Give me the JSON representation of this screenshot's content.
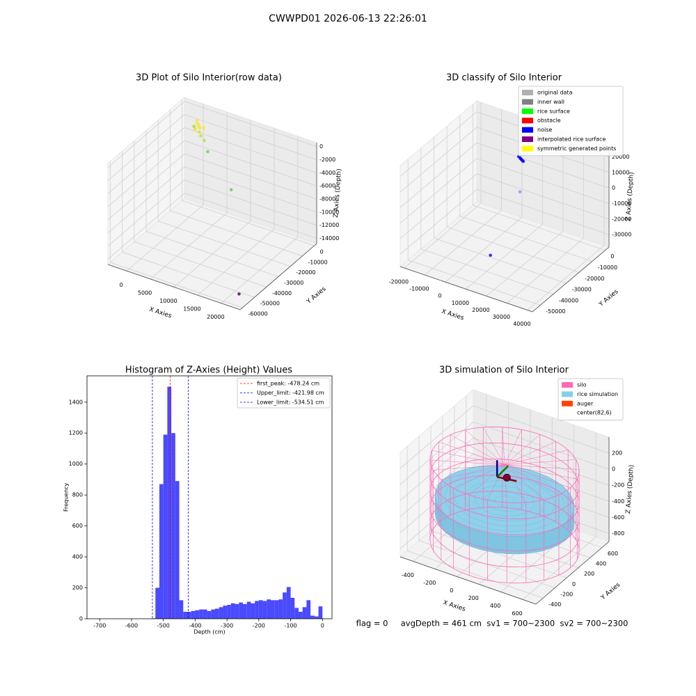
{
  "title": "CWWPD01 2026-06-13 22:26:01",
  "footer": "flag = 0     avgDepth = 461 cm  sv1 = 700~2300  sv2 = 700~2300",
  "chart_data": [
    {
      "type": "scatter3d",
      "title": "3D Plot of Silo Interior(row data)",
      "xlabel": "X Axies",
      "ylabel": "Y Axies",
      "zlabel": "Z Axies (Depth)",
      "xlim": [
        -4000,
        24000
      ],
      "ylim": [
        -62000,
        2000
      ],
      "zlim": [
        -14800,
        600
      ],
      "xticks": [
        0,
        5000,
        10000,
        15000,
        20000
      ],
      "yticks": [
        -60000,
        -50000,
        -40000,
        -30000,
        -20000,
        -10000,
        0
      ],
      "zticks": [
        -14000,
        -12000,
        -10000,
        -8000,
        -6000,
        -4000,
        -2000,
        0
      ],
      "points": {
        "x": [
          1500,
          2000,
          2500,
          3000,
          1800,
          2800,
          3500,
          1200,
          2200,
          4500,
          6500,
          800,
          14000,
          22000
        ],
        "y": [
          -9000,
          -10000,
          -11000,
          -9500,
          -12000,
          -12500,
          -14000,
          -8000,
          -10500,
          -15000,
          -20000,
          -9000,
          -30000,
          -55000
        ],
        "z": [
          -300,
          -200,
          -400,
          -500,
          -600,
          -700,
          -900,
          -100,
          -350,
          -1200,
          -1600,
          -900,
          -4000,
          -14000
        ],
        "colors": [
          "#fde725",
          "#fde725",
          "#f1e51d",
          "#fde725",
          "#e2e418",
          "#d8e219",
          "#c2df23",
          "#fde725",
          "#fde725",
          "#b5de2b",
          "#6ccd5a",
          "#a2da37",
          "#5ec962",
          "#440154"
        ]
      }
    },
    {
      "type": "scatter3d",
      "title": "3D classify of Silo Interior",
      "xlabel": "X Axies",
      "ylabel": "Y Axies",
      "zlabel": "Z Axies (Depth)",
      "xlim": [
        -22000,
        42400
      ],
      "ylim": [
        -56000,
        3000
      ],
      "zlim": [
        -38000,
        27000
      ],
      "xticks": [
        -20000,
        -10000,
        0,
        10000,
        20000,
        30000,
        40000
      ],
      "yticks": [
        -50000,
        -40000,
        -30000,
        -20000,
        -10000,
        0
      ],
      "zticks": [
        -30000,
        -20000,
        -10000,
        0,
        10000,
        20000
      ],
      "legend": [
        {
          "name": "original data",
          "color": "#b0b0b0"
        },
        {
          "name": "inner wall",
          "color": "#808080"
        },
        {
          "name": "rice surface",
          "color": "#00ff00"
        },
        {
          "name": "obstacle",
          "color": "#ff0000"
        },
        {
          "name": "noise",
          "color": "#0000ff"
        },
        {
          "name": "interpolated rice surface",
          "color": "#800080"
        },
        {
          "name": "symmetric generated points",
          "color": "#ffff00"
        }
      ],
      "points": {
        "x": [
          6000,
          6800,
          7300,
          7900,
          8600,
          9200,
          7000,
          15000
        ],
        "y": [
          -9000,
          -9300,
          -9600,
          -9900,
          -10200,
          -10500,
          -9600,
          -45000
        ],
        "z": [
          12300,
          12100,
          12000,
          11900,
          11800,
          11700,
          -9500,
          -21750
        ],
        "colors": [
          "#0000ff",
          "#0000ff",
          "#0000ff",
          "#0000ff",
          "#0000ff",
          "#0000ff",
          "#9090ff",
          "#0000ff"
        ]
      }
    },
    {
      "type": "histogram",
      "title": "Histogram of Z-Axies (Height) Values",
      "xlabel": "Depth (cm)",
      "ylabel": "Frequency",
      "color": "#4a4aff",
      "xlim": [
        -740,
        30
      ],
      "ylim": [
        0,
        1570
      ],
      "xticks": [
        -700,
        -600,
        -500,
        -400,
        -300,
        -200,
        -100,
        0
      ],
      "yticks": [
        0,
        200,
        400,
        600,
        800,
        1000,
        1200,
        1400
      ],
      "bins": [
        -737.5,
        -725,
        -712.5,
        -700,
        -687.5,
        -675,
        -662.5,
        -650,
        -637.5,
        -625,
        -612.5,
        -600,
        -587.5,
        -575,
        -562.5,
        -550,
        -537.5,
        -525,
        -512.5,
        -500,
        -487.5,
        -475,
        -462.5,
        -450,
        -437.5,
        -425,
        -412.5,
        -400,
        -387.5,
        -375,
        -362.5,
        -350,
        -337.5,
        -325,
        -312.5,
        -300,
        -287.5,
        -275,
        -262.5,
        -250,
        -237.5,
        -225,
        -212.5,
        -200,
        -187.5,
        -175,
        -162.5,
        -150,
        -137.5,
        -125,
        -112.5,
        -100,
        -87.5,
        -75,
        -62.5,
        -50,
        -37.5,
        -25,
        -12.5,
        0
      ],
      "values": [
        0,
        0,
        0,
        0,
        0,
        0,
        0,
        0,
        0,
        0,
        0,
        0,
        0,
        0,
        0,
        0,
        3,
        200,
        870,
        1190,
        1500,
        1200,
        890,
        120,
        45,
        45,
        50,
        55,
        60,
        60,
        50,
        60,
        65,
        75,
        85,
        90,
        100,
        95,
        105,
        95,
        110,
        100,
        115,
        120,
        115,
        125,
        120,
        120,
        125,
        170,
        205,
        135,
        70,
        45,
        75,
        120,
        20,
        15,
        80
      ],
      "lines": [
        {
          "name": "first_peak: -478.24 cm",
          "value": -478.24,
          "color": "#ff0000"
        },
        {
          "name": "Upper_limit: -421.98 cm",
          "value": -421.98,
          "color": "#0000ff"
        },
        {
          "name": "Lower_limit: -534.51 cm",
          "value": -534.51,
          "color": "#0000ff"
        }
      ]
    },
    {
      "type": "silo3d",
      "title": "3D simulation of Silo Interior",
      "xlabel": "X Axies",
      "ylabel": "Y Axies",
      "zlabel": "Z Axies (Depth)",
      "xlim": [
        -520,
        720
      ],
      "ylim": [
        -520,
        720
      ],
      "zlim": [
        -900,
        400
      ],
      "xticks": [
        -400,
        -200,
        0,
        200,
        400,
        600
      ],
      "yticks": [
        -400,
        -200,
        0,
        200,
        400,
        600
      ],
      "zticks": [
        -800,
        -600,
        -400,
        -200,
        0,
        200
      ],
      "legend": [
        {
          "name": "silo",
          "color": "#ff69b4"
        },
        {
          "name": "rice simulation",
          "color": "#87ceeb"
        },
        {
          "name": "auger",
          "color": "#ff4500"
        },
        {
          "name": "center(82,6)",
          "color": "none"
        }
      ]
    }
  ]
}
